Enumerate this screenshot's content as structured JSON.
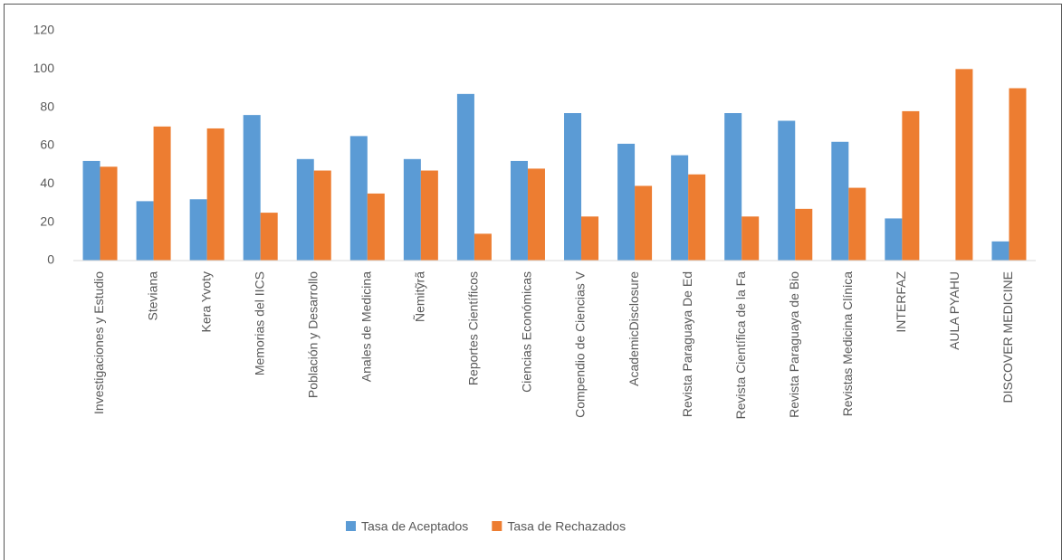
{
  "chart_data": {
    "type": "bar",
    "categories": [
      "Investigaciones y Estudio",
      "Steviana",
      "Kera Yvoty",
      "Memorias del IICS",
      "Población y Desarrollo",
      "Anales de Medicina",
      "Ñemitỹrã",
      "Reportes Científicos",
      "Ciencias Económicas",
      "Compendio de Ciencias V",
      "AcademicDisclosure",
      "Revista Paraguaya De Ed",
      "Revista Científica de la Fa",
      "Revista Paraguaya de Bio",
      "Revistas Medicina Clínica",
      "INTERFAZ",
      "AULA PYAHU",
      "DISCOVER MEDICINE"
    ],
    "series": [
      {
        "name": "Tasa de Aceptados",
        "color": "#5b9bd5",
        "values": [
          52,
          31,
          32,
          76,
          53,
          65,
          53,
          87,
          52,
          77,
          61,
          55,
          77,
          73,
          62,
          22,
          0,
          10
        ]
      },
      {
        "name": "Tasa de Rechazados",
        "color": "#ed7d31",
        "values": [
          49,
          70,
          69,
          25,
          47,
          35,
          47,
          14,
          48,
          23,
          39,
          45,
          23,
          27,
          38,
          78,
          100,
          90
        ]
      }
    ],
    "ylim": [
      0,
      120
    ],
    "yticks": [
      0,
      20,
      40,
      60,
      80,
      100,
      120
    ],
    "grid": false,
    "legend": "bottom"
  }
}
